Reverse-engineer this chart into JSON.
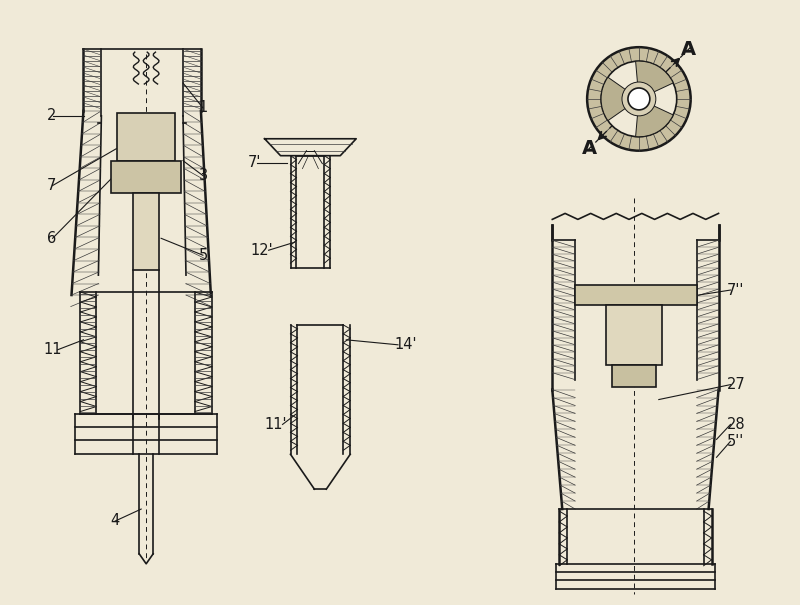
{
  "bg_color": "#f0ead8",
  "line_color": "#1a1a1a",
  "figsize": [
    8.0,
    6.05
  ],
  "dpi": 100,
  "lw_thick": 1.8,
  "lw_main": 1.2,
  "lw_thin": 0.7,
  "lw_hatch": 0.5,
  "hatch_color": "#3a3a3a"
}
